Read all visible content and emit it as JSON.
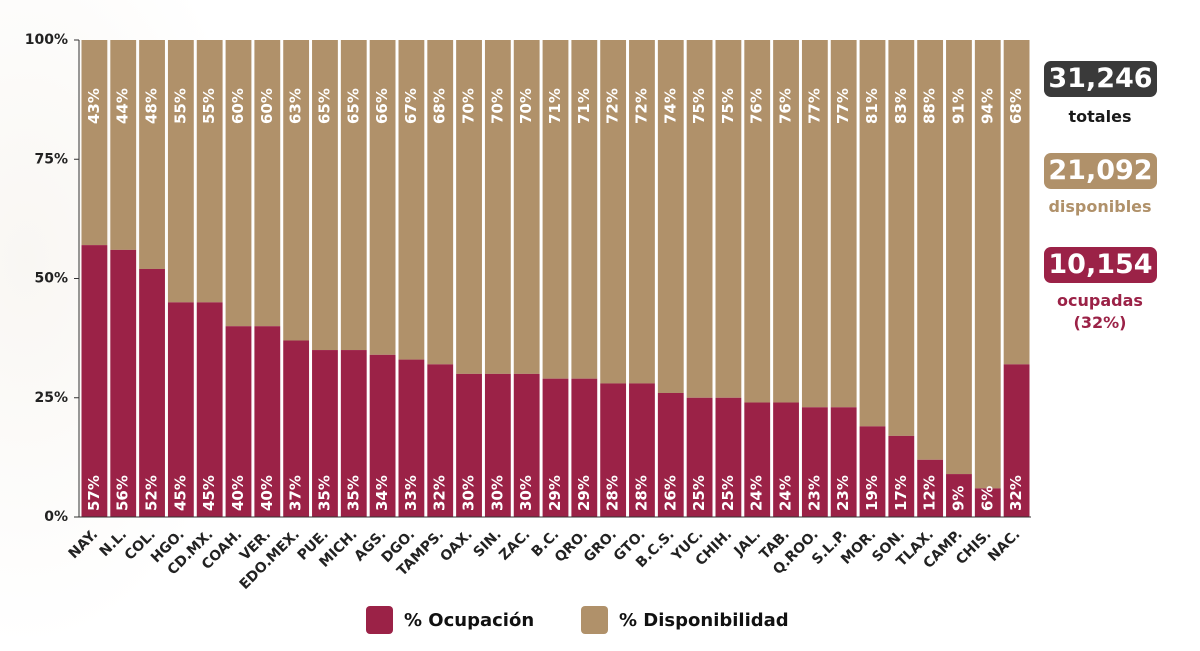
{
  "colors": {
    "ocupacion": "#9b2247",
    "disponibilidad": "#b0916a",
    "totales_box": "#3a3a3a",
    "label_white": "#ffffff"
  },
  "stats": {
    "totales": {
      "value": "31,246",
      "label": "totales"
    },
    "disponibles": {
      "value": "21,092",
      "label": "disponibles"
    },
    "ocupadas": {
      "value": "10,154",
      "label": "ocupadas",
      "sublabel": "(32%)"
    }
  },
  "legend": {
    "ocupacion": "% Ocupación",
    "disponibilidad": "% Disponibilidad"
  },
  "chart_data": {
    "type": "bar",
    "stacked": true,
    "categories": [
      "NAY.",
      "N.L.",
      "COL.",
      "HGO.",
      "CD.MX.",
      "COAH.",
      "VER.",
      "EDO.MEX.",
      "PUE.",
      "MICH.",
      "AGS.",
      "DGO.",
      "TAMPS.",
      "OAX.",
      "SIN.",
      "ZAC.",
      "B.C.",
      "QRO.",
      "GRO.",
      "GTO.",
      "B.C.S.",
      "YUC.",
      "CHIH.",
      "JAL.",
      "TAB.",
      "Q.ROO.",
      "S.L.P.",
      "MOR.",
      "SON.",
      "TLAX.",
      "CAMP.",
      "CHIS.",
      "NAC."
    ],
    "series": [
      {
        "name": "% Ocupación",
        "values": [
          57,
          56,
          52,
          45,
          45,
          40,
          40,
          37,
          35,
          35,
          34,
          33,
          32,
          30,
          30,
          30,
          29,
          29,
          28,
          28,
          26,
          25,
          25,
          24,
          24,
          23,
          23,
          19,
          17,
          12,
          9,
          6,
          32
        ]
      },
      {
        "name": "% Disponibilidad",
        "values": [
          43,
          44,
          48,
          55,
          55,
          60,
          60,
          63,
          65,
          65,
          66,
          67,
          68,
          70,
          70,
          70,
          71,
          71,
          72,
          72,
          74,
          75,
          75,
          76,
          76,
          77,
          77,
          81,
          83,
          88,
          91,
          94,
          68
        ]
      }
    ],
    "value_labels_ocupacion": [
      "57%",
      "56%",
      "52%",
      "45%",
      "45%",
      "40%",
      "40%",
      "37%",
      "35%",
      "35%",
      "34%",
      "33%",
      "32%",
      "30%",
      "30%",
      "30%",
      "29%",
      "29%",
      "28%",
      "28%",
      "26%",
      "25%",
      "25%",
      "24%",
      "24%",
      "23%",
      "23%",
      "19%",
      "17%",
      "12%",
      "9%",
      "6%",
      "32%"
    ],
    "value_labels_disponibilidad": [
      "43%",
      "44%",
      "48%",
      "55%",
      "55%",
      "60%",
      "60%",
      "63%",
      "65%",
      "65%",
      "66%",
      "67%",
      "68%",
      "70%",
      "70%",
      "70%",
      "71%",
      "71%",
      "72%",
      "72%",
      "74%",
      "75%",
      "75%",
      "76%",
      "76%",
      "77%",
      "77%",
      "81%",
      "83%",
      "88%",
      "91%",
      "94%",
      "68%"
    ],
    "yticks": [
      "0%",
      "25%",
      "50%",
      "75%",
      "100%"
    ],
    "ytick_values": [
      0,
      25,
      50,
      75,
      100
    ],
    "ylim": [
      0,
      100
    ],
    "grid": false,
    "legend_position": "bottom-center"
  }
}
